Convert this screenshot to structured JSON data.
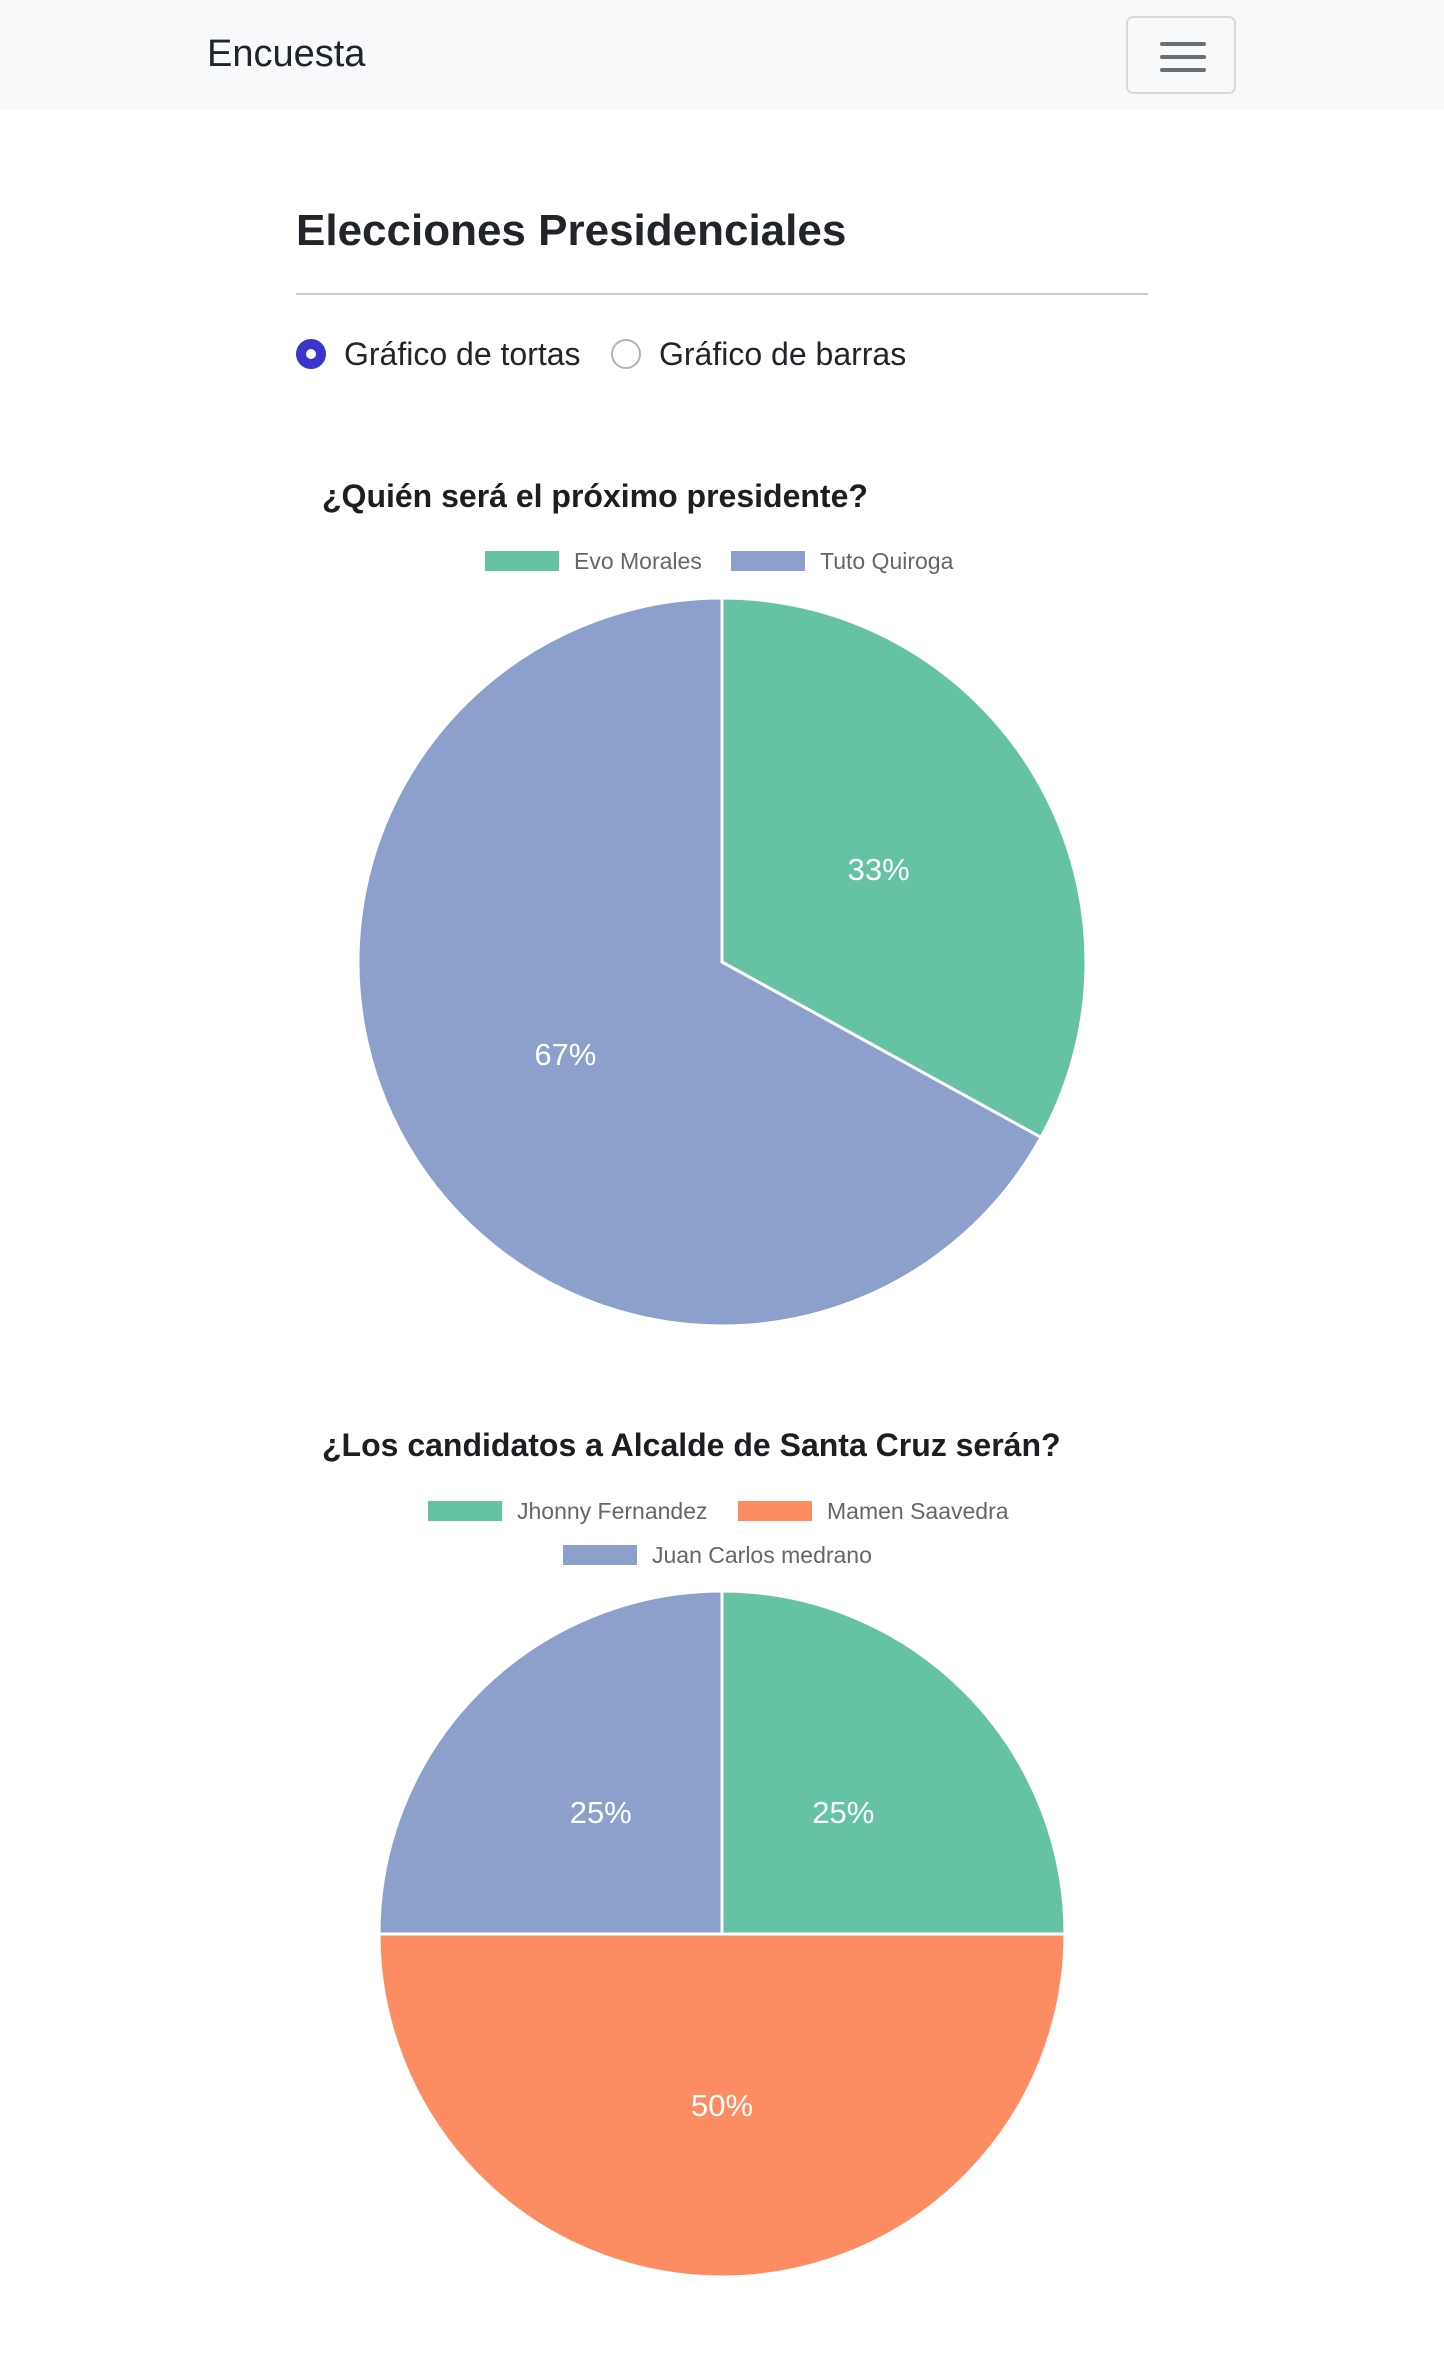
{
  "navbar": {
    "brand": "Encuesta",
    "toggler_icon": "hamburger-menu-icon"
  },
  "page": {
    "title": "Elecciones Presidenciales"
  },
  "view_options": [
    {
      "label": "Gráfico de tortas",
      "selected": true
    },
    {
      "label": "Gráfico de barras",
      "selected": false
    }
  ],
  "colors": {
    "accent": "#3b36c9",
    "green": "#66c2a5",
    "orange": "#fc8d62",
    "blue": "#8da0cb"
  },
  "chart_data": [
    {
      "type": "pie",
      "title": "¿Quién será el próximo presidente?",
      "legend_position": "top",
      "categories": [
        "Evo Morales",
        "Tuto Quiroga"
      ],
      "values": [
        33,
        67
      ],
      "labels": [
        "33%",
        "67%"
      ],
      "colors": [
        "#66c2a5",
        "#8da0cb"
      ]
    },
    {
      "type": "pie",
      "title": "¿Los candidatos a Alcalde de Santa Cruz serán?",
      "legend_position": "top",
      "categories": [
        "Jhonny Fernandez",
        "Mamen Saavedra",
        "Juan Carlos medrano"
      ],
      "values": [
        25,
        50,
        25
      ],
      "labels": [
        "25%",
        "50%",
        "25%"
      ],
      "colors": [
        "#66c2a5",
        "#fc8d62",
        "#8da0cb"
      ]
    }
  ]
}
